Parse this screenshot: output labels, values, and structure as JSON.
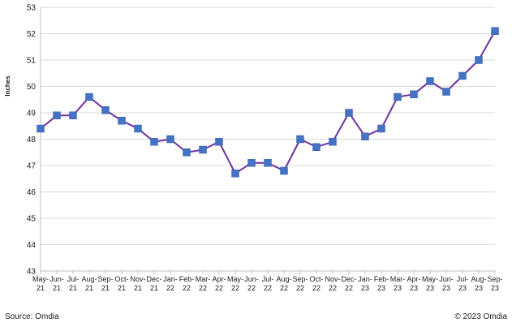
{
  "chart_data": {
    "type": "line",
    "title": "",
    "xlabel": "",
    "ylabel": "Inches",
    "ylim": [
      43,
      53
    ],
    "yticks": [
      43,
      44,
      45,
      46,
      47,
      48,
      49,
      50,
      51,
      52,
      53
    ],
    "grid": "horizontal",
    "categories": [
      [
        "May-",
        "21"
      ],
      [
        "Jun-",
        "21"
      ],
      [
        "Jul-",
        "21"
      ],
      [
        "Aug-",
        "21"
      ],
      [
        "Sep-",
        "21"
      ],
      [
        "Oct-",
        "21"
      ],
      [
        "Nov-",
        "21"
      ],
      [
        "Dec-",
        "21"
      ],
      [
        "Jan-",
        "22"
      ],
      [
        "Feb-",
        "22"
      ],
      [
        "Mar-",
        "22"
      ],
      [
        "Apr-",
        "22"
      ],
      [
        "May-",
        "22"
      ],
      [
        "Jun-",
        "22"
      ],
      [
        "Jul-",
        "22"
      ],
      [
        "Aug-",
        "22"
      ],
      [
        "Sep-",
        "22"
      ],
      [
        "Oct-",
        "22"
      ],
      [
        "Nov-",
        "22"
      ],
      [
        "Dec-",
        "22"
      ],
      [
        "Jan-",
        "23"
      ],
      [
        "Feb-",
        "23"
      ],
      [
        "Mar-",
        "23"
      ],
      [
        "Apr-",
        "23"
      ],
      [
        "May-",
        "23"
      ],
      [
        "Jun-",
        "23"
      ],
      [
        "Jul-",
        "23"
      ],
      [
        "Aug-",
        "23"
      ],
      [
        "Sep-",
        "23"
      ]
    ],
    "series": [
      {
        "name": "",
        "line_color": "#7030a0",
        "marker_color": "#4472c4",
        "values": [
          48.4,
          48.9,
          48.9,
          49.6,
          49.1,
          48.7,
          48.4,
          47.9,
          48.0,
          47.5,
          47.6,
          47.9,
          46.7,
          47.1,
          47.1,
          46.8,
          48.0,
          47.7,
          47.9,
          49.0,
          48.1,
          48.4,
          49.6,
          49.7,
          50.2,
          49.8,
          50.4,
          51.0,
          52.1
        ]
      }
    ]
  },
  "footer": {
    "source": "Source: Omdia",
    "copyright": "© 2023 Omdia"
  }
}
